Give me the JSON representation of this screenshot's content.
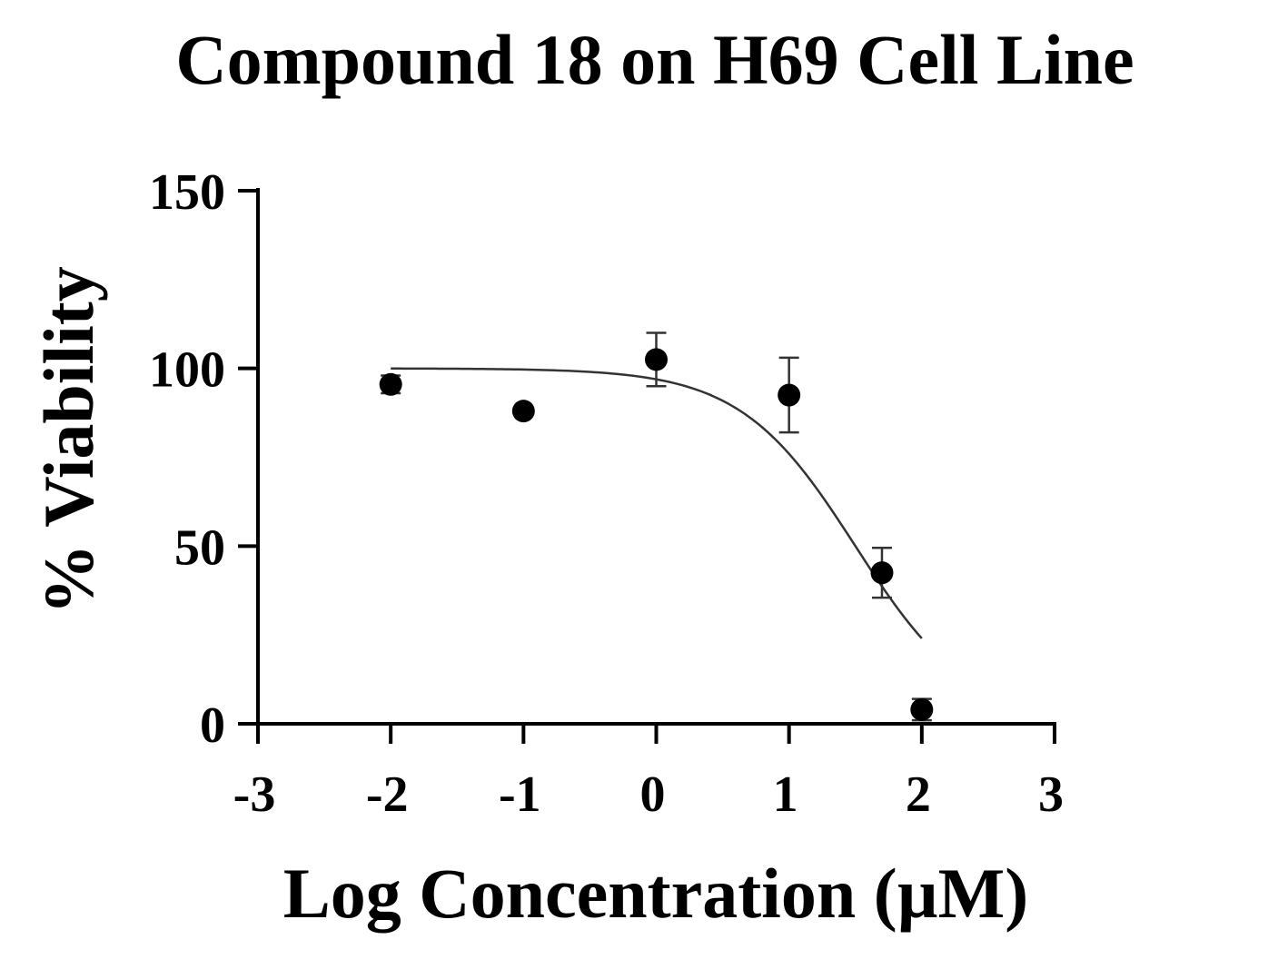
{
  "chart_data": {
    "type": "scatter",
    "title": "Compound 18 on H69 Cell Line",
    "xlabel": "Log Concentration (µM)",
    "ylabel": "% Viability",
    "xlim": [
      -3,
      3
    ],
    "ylim": [
      0,
      150
    ],
    "xticks": [
      -3,
      -2,
      -1,
      0,
      1,
      2,
      3
    ],
    "xtick_labels": [
      "-3",
      "-2",
      "-1",
      "0",
      "1",
      "2",
      "3"
    ],
    "yticks": [
      0,
      50,
      100,
      150
    ],
    "ytick_labels": [
      "0",
      "50",
      "100",
      "150"
    ],
    "grid": false,
    "legend": "none",
    "colors": {
      "marker": "#000000",
      "fit": "#333333",
      "error": "#333333"
    },
    "series": [
      {
        "points": [
          {
            "x": -2.0,
            "y": 95.5,
            "err": 2.5
          },
          {
            "x": -1.0,
            "y": 88.0,
            "err": 0
          },
          {
            "x": 0.0,
            "y": 102.5,
            "err": 7.5
          },
          {
            "x": 1.0,
            "y": 92.5,
            "err": 10.5
          },
          {
            "x": 1.7,
            "y": 42.5,
            "err": 7.0
          },
          {
            "x": 2.0,
            "y": 4.0,
            "err": 3.0
          }
        ]
      }
    ],
    "fit": {
      "model": "sigmoidal dose-response",
      "top": 100,
      "bottom": 0,
      "logIC50": 1.5,
      "hill": 1.0,
      "x_range": [
        -2.0,
        2.0
      ]
    }
  }
}
